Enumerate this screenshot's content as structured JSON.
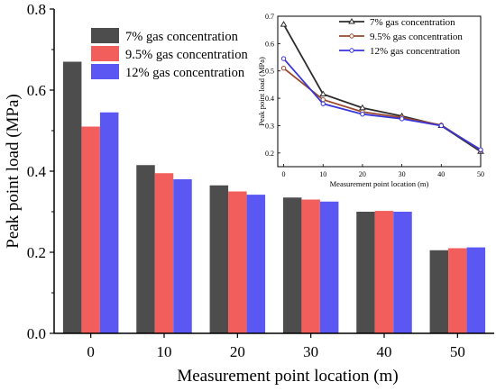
{
  "chart_data": [
    {
      "type": "bar",
      "title": "",
      "xlabel": "Measurement point location (m)",
      "ylabel": "Peak point load (MPa)",
      "categories": [
        "0",
        "10",
        "20",
        "30",
        "40",
        "50"
      ],
      "ylim": [
        0.0,
        0.8
      ],
      "yticks": [
        "0.0",
        "0.2",
        "0.4",
        "0.6",
        "0.8"
      ],
      "grid": false,
      "legend_position": "top-left",
      "series": [
        {
          "name": "7% gas concentration",
          "color": "#4d4d4d",
          "values": [
            0.67,
            0.415,
            0.365,
            0.335,
            0.3,
            0.205
          ]
        },
        {
          "name": "9.5% gas concentration",
          "color": "#f25e5b",
          "values": [
            0.51,
            0.395,
            0.35,
            0.33,
            0.302,
            0.21
          ]
        },
        {
          "name": "12% gas concentration",
          "color": "#5b57f2",
          "values": [
            0.545,
            0.38,
            0.342,
            0.325,
            0.3,
            0.212
          ]
        }
      ]
    },
    {
      "type": "line",
      "title": "",
      "xlabel": "Measurement point location (m)",
      "ylabel": "Peak point load (MPa)",
      "x": [
        0,
        10,
        20,
        30,
        40,
        50
      ],
      "xlim": [
        -1.5,
        50
      ],
      "ylim": [
        0.15,
        0.7
      ],
      "xticks": [
        "0",
        "10",
        "20",
        "30",
        "40",
        "50"
      ],
      "yticks": [
        "0.2",
        "0.3",
        "0.4",
        "0.5",
        "0.6",
        "0.7"
      ],
      "grid": false,
      "legend_position": "top-right",
      "series": [
        {
          "name": "7% gas concentration",
          "color": "#2b2b2b",
          "marker": "triangle",
          "values": [
            0.67,
            0.415,
            0.365,
            0.335,
            0.3,
            0.205
          ]
        },
        {
          "name": "9.5% gas concentration",
          "color": "#9a4a2e",
          "marker": "circle",
          "values": [
            0.51,
            0.395,
            0.35,
            0.33,
            0.302,
            0.21
          ]
        },
        {
          "name": "12% gas concentration",
          "color": "#3a35d8",
          "marker": "circle",
          "values": [
            0.545,
            0.38,
            0.342,
            0.325,
            0.3,
            0.212
          ]
        }
      ]
    }
  ]
}
